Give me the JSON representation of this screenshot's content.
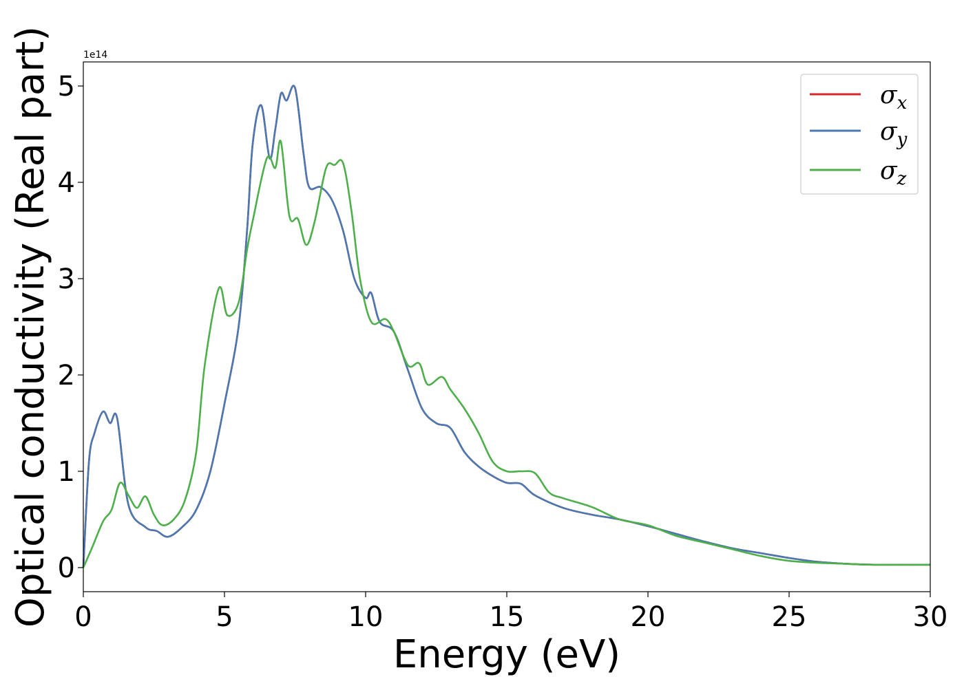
{
  "chart_data": {
    "type": "line",
    "title": "",
    "xlabel": "Energy (eV)",
    "ylabel": "Optical conductivity (Real part)",
    "y_offset_label": "1e14",
    "xlim": [
      0,
      30
    ],
    "ylim": [
      -0.25,
      5.25
    ],
    "xticks": [
      0,
      5,
      10,
      15,
      20,
      25,
      30
    ],
    "yticks": [
      0,
      1,
      2,
      3,
      4,
      5
    ],
    "grid": false,
    "legend_position": "top-right",
    "series": [
      {
        "name": "σx",
        "legend_base": "σ",
        "legend_sub": "x",
        "color": "#d62728",
        "x": [
          0,
          0.2,
          0.4,
          0.7,
          0.95,
          1.2,
          1.6,
          2.2,
          2.6,
          3.0,
          3.5,
          4.0,
          4.5,
          5.0,
          5.5,
          5.8,
          6.0,
          6.3,
          6.6,
          6.8,
          7.0,
          7.2,
          7.5,
          7.8,
          8.0,
          8.4,
          8.8,
          9.2,
          9.6,
          10.0,
          10.2,
          10.5,
          11.0,
          11.5,
          12.0,
          12.5,
          13.0,
          13.5,
          14.0,
          14.5,
          15.0,
          15.5,
          16.0,
          17.0,
          18.0,
          19.0,
          20.0,
          21.0,
          22.0,
          23.0,
          24.0,
          25.0,
          26.0,
          27.0,
          28.0,
          30.0
        ],
        "values": [
          0,
          1.1,
          1.4,
          1.62,
          1.5,
          1.55,
          0.65,
          0.42,
          0.38,
          0.32,
          0.42,
          0.6,
          1.0,
          1.7,
          2.5,
          3.5,
          4.4,
          4.8,
          4.25,
          4.55,
          4.92,
          4.85,
          4.98,
          4.3,
          3.95,
          3.95,
          3.82,
          3.5,
          3.0,
          2.8,
          2.85,
          2.55,
          2.45,
          2.05,
          1.65,
          1.5,
          1.45,
          1.2,
          1.05,
          0.95,
          0.88,
          0.87,
          0.75,
          0.62,
          0.55,
          0.5,
          0.43,
          0.35,
          0.27,
          0.2,
          0.15,
          0.1,
          0.06,
          0.04,
          0.03,
          0.03
        ]
      },
      {
        "name": "σy",
        "legend_base": "σ",
        "legend_sub": "y",
        "color": "#4a78b2",
        "x": [
          0,
          0.2,
          0.4,
          0.7,
          0.95,
          1.2,
          1.6,
          2.2,
          2.6,
          3.0,
          3.5,
          4.0,
          4.5,
          5.0,
          5.5,
          5.8,
          6.0,
          6.3,
          6.6,
          6.8,
          7.0,
          7.2,
          7.5,
          7.8,
          8.0,
          8.4,
          8.8,
          9.2,
          9.6,
          10.0,
          10.2,
          10.5,
          11.0,
          11.5,
          12.0,
          12.5,
          13.0,
          13.5,
          14.0,
          14.5,
          15.0,
          15.5,
          16.0,
          17.0,
          18.0,
          19.0,
          20.0,
          21.0,
          22.0,
          23.0,
          24.0,
          25.0,
          26.0,
          27.0,
          28.0,
          30.0
        ],
        "values": [
          0,
          1.1,
          1.4,
          1.62,
          1.5,
          1.55,
          0.65,
          0.42,
          0.38,
          0.32,
          0.42,
          0.6,
          1.0,
          1.7,
          2.5,
          3.5,
          4.4,
          4.8,
          4.25,
          4.55,
          4.92,
          4.85,
          4.98,
          4.3,
          3.95,
          3.95,
          3.82,
          3.5,
          3.0,
          2.8,
          2.85,
          2.55,
          2.45,
          2.05,
          1.65,
          1.5,
          1.45,
          1.2,
          1.05,
          0.95,
          0.88,
          0.87,
          0.75,
          0.62,
          0.55,
          0.5,
          0.43,
          0.35,
          0.27,
          0.2,
          0.15,
          0.1,
          0.06,
          0.04,
          0.03,
          0.03
        ]
      },
      {
        "name": "σz",
        "legend_base": "σ",
        "legend_sub": "z",
        "color": "#4daf4a",
        "x": [
          0,
          0.3,
          0.7,
          1.0,
          1.3,
          1.6,
          1.9,
          2.2,
          2.5,
          2.8,
          3.2,
          3.6,
          4.0,
          4.3,
          4.8,
          5.1,
          5.5,
          5.8,
          6.0,
          6.5,
          6.8,
          7.0,
          7.3,
          7.6,
          7.9,
          8.2,
          8.6,
          8.9,
          9.2,
          9.5,
          9.8,
          10.2,
          10.7,
          11.0,
          11.5,
          11.9,
          12.2,
          12.7,
          13.0,
          13.5,
          14.0,
          14.5,
          15.0,
          15.5,
          16.0,
          16.5,
          17.0,
          18.0,
          19.0,
          20.0,
          21.0,
          22.0,
          23.0,
          24.0,
          25.0,
          26.0,
          27.0,
          28.0,
          30.0
        ],
        "values": [
          0,
          0.2,
          0.48,
          0.6,
          0.88,
          0.75,
          0.62,
          0.74,
          0.55,
          0.44,
          0.5,
          0.7,
          1.2,
          2.1,
          2.9,
          2.62,
          2.75,
          3.3,
          3.6,
          4.25,
          4.15,
          4.42,
          3.65,
          3.62,
          3.35,
          3.6,
          4.15,
          4.18,
          4.2,
          3.7,
          3.0,
          2.55,
          2.58,
          2.45,
          2.1,
          2.12,
          1.9,
          1.98,
          1.85,
          1.65,
          1.4,
          1.1,
          1.0,
          1.0,
          0.98,
          0.78,
          0.72,
          0.63,
          0.5,
          0.44,
          0.33,
          0.26,
          0.19,
          0.12,
          0.07,
          0.05,
          0.04,
          0.03,
          0.03
        ]
      }
    ]
  }
}
